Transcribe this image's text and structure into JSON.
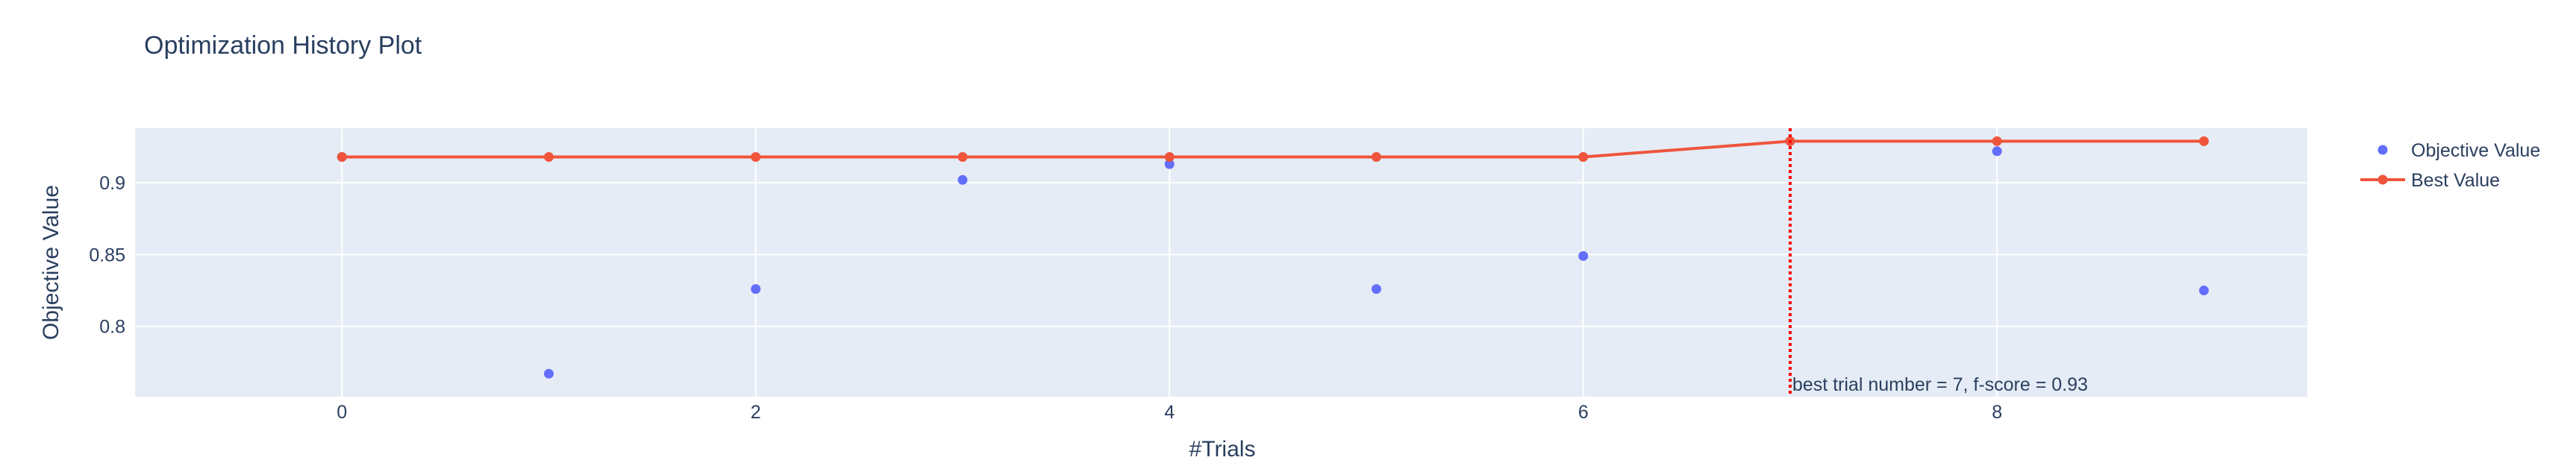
{
  "chart_data": {
    "type": "scatter",
    "title": "Optimization History Plot",
    "xlabel": "#Trials",
    "ylabel": "Objective Value",
    "xlim": [
      -1,
      9.5
    ],
    "ylim": [
      0.751,
      0.938
    ],
    "x_ticks": [
      0,
      2,
      4,
      6,
      8
    ],
    "y_ticks": [
      0.8,
      0.85,
      0.9
    ],
    "x_tick_labels": [
      "0",
      "2",
      "4",
      "6",
      "8"
    ],
    "y_tick_labels": [
      "0.8",
      "0.85",
      "0.9"
    ],
    "grid": true,
    "legend_position": "top-right",
    "series": [
      {
        "name": "Objective Value",
        "mode": "markers",
        "color": "#636efa",
        "x": [
          0,
          1,
          2,
          3,
          4,
          5,
          6,
          7,
          8,
          9
        ],
        "y": [
          0.918,
          0.767,
          0.826,
          0.902,
          0.913,
          0.826,
          0.849,
          0.929,
          0.922,
          0.825
        ]
      },
      {
        "name": "Best Value",
        "mode": "lines+markers",
        "color": "#ef553b",
        "x": [
          0,
          1,
          2,
          3,
          4,
          5,
          6,
          7,
          8,
          9
        ],
        "y": [
          0.918,
          0.918,
          0.918,
          0.918,
          0.918,
          0.918,
          0.918,
          0.929,
          0.929,
          0.929
        ]
      }
    ],
    "best_trial_line": {
      "x": 7,
      "color": "#ff0000",
      "style": "dotted",
      "label": "best trial number = 7, f-score = 0.93"
    }
  }
}
